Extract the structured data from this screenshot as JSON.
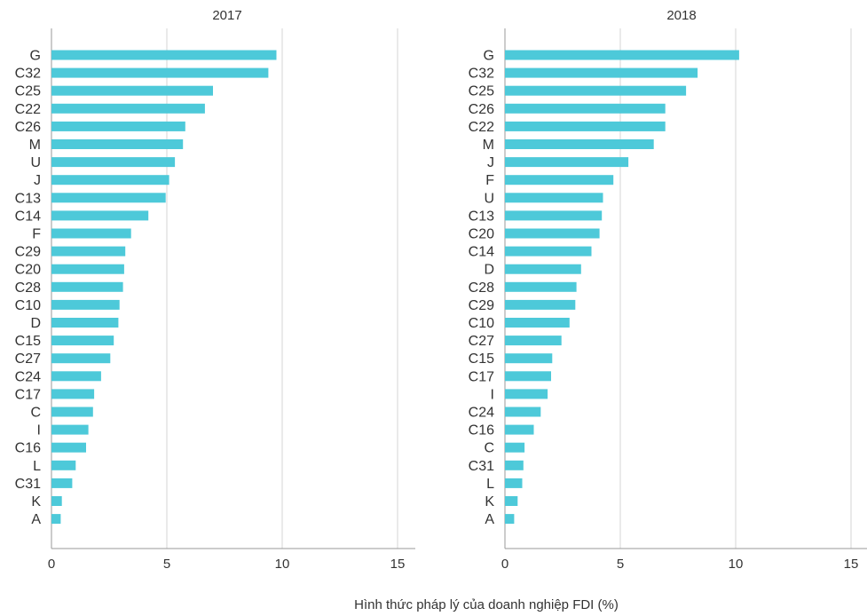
{
  "chart_data": [
    {
      "type": "bar",
      "orientation": "horizontal",
      "title": "2017",
      "xlim": [
        0,
        15.5
      ],
      "xticks": [
        "0",
        "5",
        "10",
        "15"
      ],
      "grid": "vertical",
      "color": "#4dc9d9",
      "categories": [
        "G",
        "C32",
        "C25",
        "C22",
        "C26",
        "M",
        "U",
        "J",
        "C13",
        "C14",
        "F",
        "C29",
        "C20",
        "C28",
        "C10",
        "D",
        "C15",
        "C27",
        "C24",
        "C17",
        "C",
        "I",
        "C16",
        "L",
        "C31",
        "K",
        "A"
      ],
      "values": [
        9.75,
        9.4,
        7.0,
        6.65,
        5.8,
        5.7,
        5.35,
        5.1,
        4.95,
        4.2,
        3.45,
        3.2,
        3.15,
        3.1,
        2.95,
        2.9,
        2.7,
        2.55,
        2.15,
        1.85,
        1.8,
        1.6,
        1.5,
        1.05,
        0.9,
        0.45,
        0.4
      ]
    },
    {
      "type": "bar",
      "orientation": "horizontal",
      "title": "2018",
      "xlim": [
        0,
        15.5
      ],
      "xticks": [
        "0",
        "5",
        "10",
        "15"
      ],
      "grid": "vertical",
      "color": "#4dc9d9",
      "categories": [
        "G",
        "C32",
        "C25",
        "C26",
        "C22",
        "M",
        "J",
        "F",
        "U",
        "C13",
        "C20",
        "C14",
        "D",
        "C28",
        "C29",
        "C10",
        "C27",
        "C15",
        "C17",
        "I",
        "C24",
        "C16",
        "C",
        "C31",
        "L",
        "K",
        "A"
      ],
      "values": [
        10.15,
        8.35,
        7.85,
        6.95,
        6.95,
        6.45,
        5.35,
        4.7,
        4.25,
        4.2,
        4.1,
        3.75,
        3.3,
        3.1,
        3.05,
        2.8,
        2.45,
        2.05,
        2.0,
        1.85,
        1.55,
        1.25,
        0.85,
        0.8,
        0.75,
        0.55,
        0.4
      ]
    }
  ],
  "xlabel": "Hình thức pháp lý của doanh nghiệp FDI (%)"
}
